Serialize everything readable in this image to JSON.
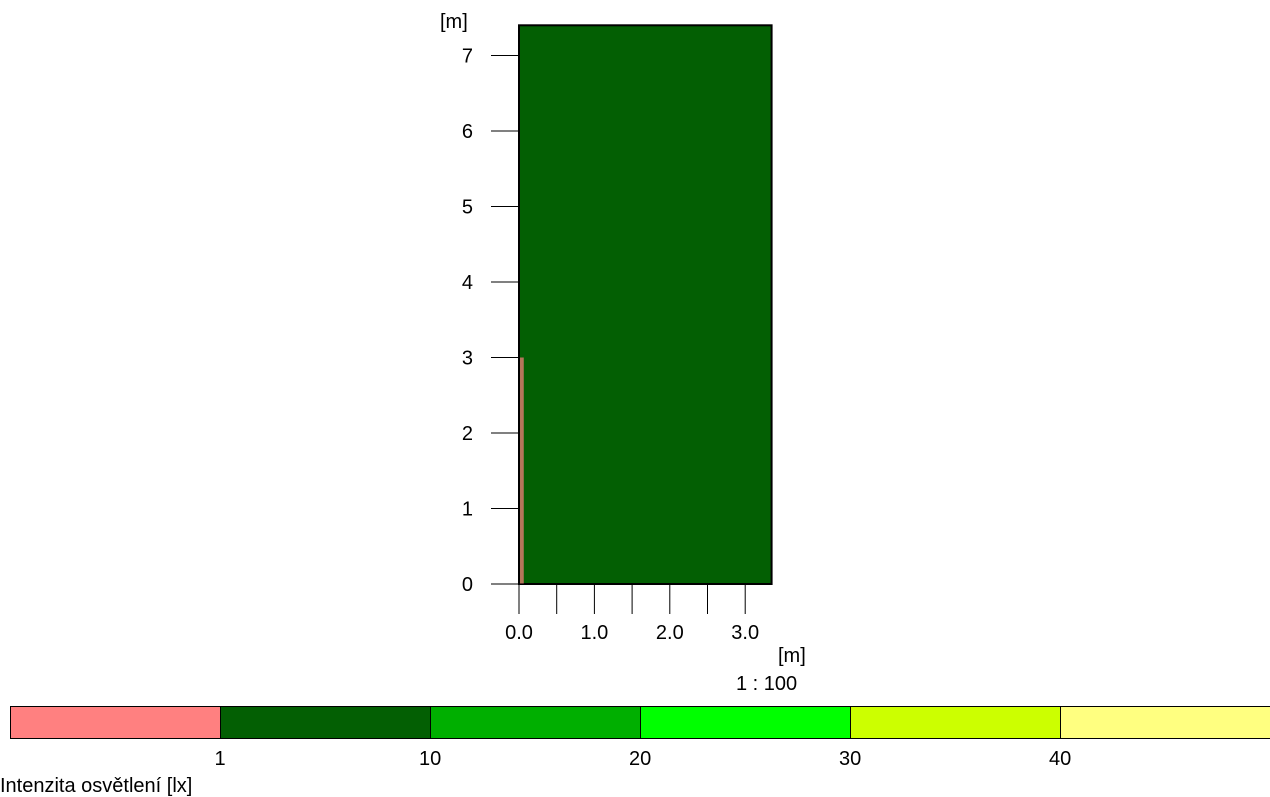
{
  "chart_data": {
    "type": "heatmap",
    "x_unit": "[m]",
    "y_unit": "[m]",
    "x_ticks": [
      0.0,
      0.5,
      1.0,
      1.5,
      2.0,
      2.5,
      3.0
    ],
    "x_tick_labels": [
      "0.0",
      "1.0",
      "2.0",
      "3.0"
    ],
    "x_tick_label_values": [
      0.0,
      1.0,
      2.0,
      3.0
    ],
    "y_ticks": [
      0,
      1,
      2,
      3,
      4,
      5,
      6,
      7
    ],
    "y_tick_labels": [
      "0",
      "1",
      "2",
      "3",
      "4",
      "5",
      "6",
      "7"
    ],
    "xlim": [
      0,
      3.35
    ],
    "ylim": [
      0,
      7.4
    ],
    "field": {
      "x": [
        0,
        3.35
      ],
      "y": [
        0,
        7.4
      ],
      "value_range": "1-10",
      "color": "#035F03"
    },
    "edge_strip": {
      "x": [
        0,
        0.05
      ],
      "y": [
        0,
        3.0
      ],
      "value_range": "<1",
      "color": "#FF8080"
    },
    "scale": "1 : 100",
    "legend": {
      "title": "Intenzita osvětlení [lx]",
      "tick_labels": [
        "1",
        "10",
        "20",
        "30",
        "40"
      ],
      "bins": [
        {
          "range": "<1",
          "color": "#FF8080"
        },
        {
          "range": "1-10",
          "color": "#035F03"
        },
        {
          "range": "10-20",
          "color": "#00AF00"
        },
        {
          "range": "20-30",
          "color": "#00FF00"
        },
        {
          "range": "30-40",
          "color": "#CCFF00"
        },
        {
          "range": ">40",
          "color": "#FFFF80"
        }
      ]
    }
  }
}
